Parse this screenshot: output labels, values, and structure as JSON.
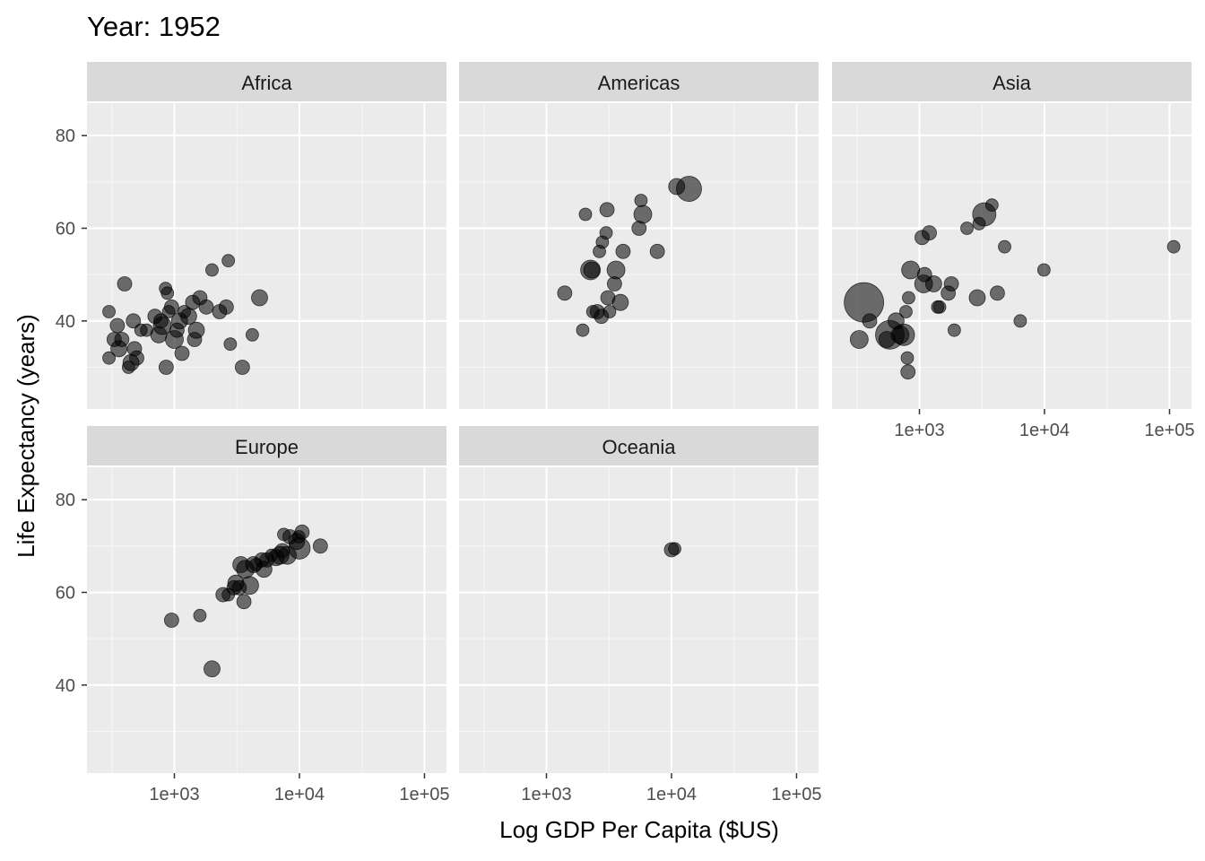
{
  "chart_data": {
    "type": "scatter",
    "title": "Year: 1952",
    "xlabel": "Log GDP Per Capita ($US)",
    "ylabel": "Life Expectancy (years)",
    "x_scale": "log10",
    "xlim": [
      200,
      150000
    ],
    "ylim": [
      21,
      87
    ],
    "x_ticks": [
      1000,
      10000,
      100000
    ],
    "x_tick_labels": [
      "1e+03",
      "1e+04",
      "1e+05"
    ],
    "y_ticks": [
      40,
      60,
      80
    ],
    "y_tick_labels": [
      "40",
      "60",
      "80"
    ],
    "grid": true,
    "point_color": "#000000",
    "point_opacity": 0.55,
    "panel_background": "#ebebeb",
    "strip_background": "#d9d9d9",
    "panels": [
      {
        "name": "Africa",
        "points": [
          [
            300,
            32,
            7
          ],
          [
            300,
            42,
            7
          ],
          [
            330,
            36,
            8
          ],
          [
            350,
            39,
            8
          ],
          [
            360,
            34,
            9
          ],
          [
            380,
            36,
            8
          ],
          [
            400,
            48,
            8
          ],
          [
            430,
            30,
            7
          ],
          [
            450,
            31,
            9
          ],
          [
            470,
            40,
            8
          ],
          [
            480,
            34,
            8
          ],
          [
            500,
            32,
            8
          ],
          [
            540,
            38,
            7
          ],
          [
            600,
            38,
            7
          ],
          [
            700,
            41,
            8
          ],
          [
            750,
            37,
            9
          ],
          [
            780,
            40,
            8
          ],
          [
            800,
            39,
            10
          ],
          [
            850,
            47,
            7
          ],
          [
            860,
            30,
            8
          ],
          [
            880,
            46,
            7
          ],
          [
            900,
            42,
            7
          ],
          [
            950,
            43,
            8
          ],
          [
            1000,
            36,
            10
          ],
          [
            1050,
            38,
            8
          ],
          [
            1100,
            40,
            9
          ],
          [
            1150,
            33,
            8
          ],
          [
            1200,
            42,
            7
          ],
          [
            1300,
            41,
            9
          ],
          [
            1400,
            44,
            8
          ],
          [
            1450,
            36,
            8
          ],
          [
            1500,
            38,
            9
          ],
          [
            1600,
            45,
            8
          ],
          [
            1800,
            43,
            8
          ],
          [
            2000,
            51,
            7
          ],
          [
            2300,
            42,
            8
          ],
          [
            2600,
            43,
            8
          ],
          [
            2700,
            53,
            7
          ],
          [
            2800,
            35,
            7
          ],
          [
            3500,
            30,
            8
          ],
          [
            4200,
            37,
            7
          ],
          [
            4800,
            45,
            9
          ]
        ]
      },
      {
        "name": "Americas",
        "points": [
          [
            1400,
            46,
            8
          ],
          [
            1950,
            38,
            7
          ],
          [
            2050,
            63,
            7
          ],
          [
            2250,
            51,
            11
          ],
          [
            2300,
            51,
            9
          ],
          [
            2350,
            42,
            7
          ],
          [
            2550,
            42,
            8
          ],
          [
            2650,
            55,
            7
          ],
          [
            2750,
            41,
            8
          ],
          [
            2800,
            57,
            7
          ],
          [
            3000,
            59,
            7
          ],
          [
            3050,
            64,
            8
          ],
          [
            3100,
            45,
            8
          ],
          [
            3200,
            42,
            7
          ],
          [
            3500,
            48,
            8
          ],
          [
            3600,
            51,
            10
          ],
          [
            3900,
            44,
            9
          ],
          [
            4100,
            55,
            8
          ],
          [
            5500,
            60,
            8
          ],
          [
            5700,
            66,
            7
          ],
          [
            5900,
            63,
            10
          ],
          [
            7700,
            55,
            8
          ],
          [
            11000,
            69,
            9
          ],
          [
            13800,
            68.5,
            14
          ]
        ]
      },
      {
        "name": "Asia",
        "points": [
          [
            330,
            36,
            10
          ],
          [
            360,
            44,
            22
          ],
          [
            400,
            40,
            8
          ],
          [
            550,
            36,
            9
          ],
          [
            580,
            37,
            16
          ],
          [
            650,
            40,
            9
          ],
          [
            700,
            37,
            10
          ],
          [
            750,
            37,
            12
          ],
          [
            780,
            42,
            7
          ],
          [
            800,
            32,
            7
          ],
          [
            810,
            29,
            8
          ],
          [
            820,
            45,
            7
          ],
          [
            850,
            51,
            10
          ],
          [
            1050,
            58,
            8
          ],
          [
            1080,
            48,
            10
          ],
          [
            1100,
            50,
            8
          ],
          [
            1200,
            59,
            8
          ],
          [
            1300,
            48,
            9
          ],
          [
            1400,
            43,
            7
          ],
          [
            1450,
            43,
            7
          ],
          [
            1700,
            46,
            8
          ],
          [
            1800,
            48,
            8
          ],
          [
            1900,
            38,
            7
          ],
          [
            2400,
            60,
            7
          ],
          [
            2900,
            45,
            9
          ],
          [
            3000,
            61,
            7
          ],
          [
            3300,
            63,
            13
          ],
          [
            3800,
            65,
            7
          ],
          [
            4200,
            46,
            8
          ],
          [
            4800,
            56,
            7
          ],
          [
            6400,
            40,
            7
          ],
          [
            9900,
            51,
            7
          ],
          [
            108000,
            56,
            7
          ]
        ]
      },
      {
        "name": "Europe",
        "points": [
          [
            950,
            54,
            8
          ],
          [
            1600,
            55,
            7
          ],
          [
            2000,
            43.5,
            9
          ],
          [
            2450,
            59.5,
            8
          ],
          [
            2700,
            59.5,
            7
          ],
          [
            3000,
            61,
            8
          ],
          [
            3100,
            62,
            9
          ],
          [
            3300,
            61,
            8
          ],
          [
            3400,
            66,
            9
          ],
          [
            3600,
            58,
            8
          ],
          [
            3700,
            65,
            10
          ],
          [
            4000,
            61.5,
            10
          ],
          [
            4300,
            66,
            9
          ],
          [
            4500,
            66,
            7
          ],
          [
            5000,
            67,
            8
          ],
          [
            5200,
            65,
            9
          ],
          [
            5500,
            67,
            8
          ],
          [
            6000,
            68,
            7
          ],
          [
            6500,
            67.5,
            9
          ],
          [
            7000,
            68,
            10
          ],
          [
            7300,
            69,
            8
          ],
          [
            7500,
            72.5,
            7
          ],
          [
            8000,
            68,
            10
          ],
          [
            8400,
            72,
            8
          ],
          [
            9500,
            71,
            9
          ],
          [
            9900,
            72,
            7
          ],
          [
            10000,
            69.5,
            12
          ],
          [
            10500,
            73,
            8
          ],
          [
            14700,
            70,
            8
          ]
        ]
      },
      {
        "name": "Oceania",
        "points": [
          [
            10000,
            69.2,
            8
          ],
          [
            10600,
            69.4,
            7
          ]
        ]
      }
    ]
  }
}
